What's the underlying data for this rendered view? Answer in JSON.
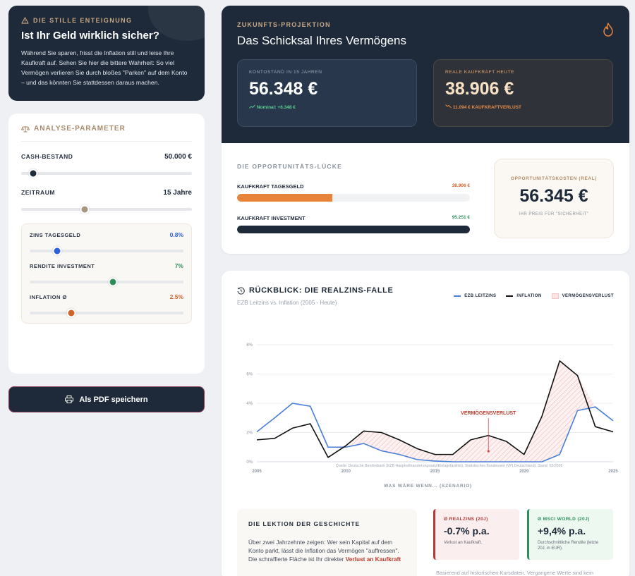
{
  "warning": {
    "eyebrow": "DIE STILLE ENTEIGNUNG",
    "title": "Ist Ihr Geld wirklich sicher?",
    "text": "Während Sie sparen, frisst die Inflation still und leise Ihre Kaufkraft auf. Sehen Sie hier die bittere Wahrheit: So viel Vermögen verlieren Sie durch bloßes \"Parken\" auf dem Konto – und das könnten Sie stattdessen daraus machen."
  },
  "params": {
    "heading": "ANALYSE-PARAMETER",
    "cash": {
      "label": "CASH-BESTAND",
      "value": "50.000 €",
      "fraction": 0.07,
      "color": "#1e2a3a"
    },
    "period": {
      "label": "ZEITRAUM",
      "value": "15 Jahre",
      "fraction": 0.37,
      "color": "#a89580"
    },
    "interest": {
      "label": "ZINS TAGESGELD",
      "value": "0.8%",
      "fraction": 0.18,
      "color": "#2f5fd6",
      "value_color": "#2f5fd6"
    },
    "return": {
      "label": "RENDITE INVESTMENT",
      "value": "7%",
      "fraction": 0.54,
      "color": "#2f8f5b",
      "value_color": "#2f8f5b"
    },
    "inflation": {
      "label": "INFLATION Ø",
      "value": "2.5%",
      "fraction": 0.27,
      "color": "#d0632a",
      "value_color": "#d0632a"
    }
  },
  "pdf_button": "Als PDF speichern",
  "projection": {
    "eyebrow": "ZUKUNFTS-PROJEKTION",
    "title": "Das Schicksal Ihres Vermögens",
    "kpi_nominal": {
      "label": "KONTOSTAND IN 15 JAHREN",
      "value": "56.348 €",
      "sub": "Nominal: +6.348 €"
    },
    "kpi_real": {
      "label": "REALE KAUFKRAFT HEUTE",
      "value": "38.906 €",
      "sub": "11.094 € KAUFKRAFTVERLUST"
    },
    "gap_eyebrow": "DIE OPPORTUNITÄTS-LÜCKE",
    "bar_cash": {
      "label": "KAUFKRAFT TAGESGELD",
      "value": "38.906 €",
      "fraction": 0.408,
      "color": "#e8843a",
      "value_color": "#d0632a"
    },
    "bar_invest": {
      "label": "KAUFKRAFT INVESTMENT",
      "value": "95.251 €",
      "fraction": 1.0,
      "color": "#1e2a3a",
      "value_color": "#2f8f5b"
    },
    "opportunity": {
      "label": "OPPORTUNITÄTSKOSTEN (REAL)",
      "value": "56.345 €",
      "sub": "IHR PREIS FÜR \"SICHERHEIT\""
    }
  },
  "history": {
    "title": "RÜCKBLICK: DIE REALZINS-FALLE",
    "subtitle": "EZB Leitzins vs. Inflation (2005 - Heute)",
    "legend": {
      "ecb": "EZB LEITZINS",
      "inflation": "INFLATION",
      "loss": "VERMÖGENSVERLUST"
    },
    "lesson_title": "DIE LEKTION DER GESCHICHTE",
    "lesson_text": "Über zwei Jahrzehnte zeigen: Wer sein Kapital auf dem Konto parkt, lässt die Inflation das Vermögen \"auffressen\". Die schraffierte Fläche ist Ihr direkter ",
    "lesson_highlight": "Verlust an Kaufkraft",
    "stat_real": {
      "label": "Ø REALZINS (20J)",
      "value": "-0.7% p.a.",
      "sub": "Verlust an Kaufkraft."
    },
    "stat_msci": {
      "label": "Ø MSCI WORLD (20J)",
      "value": "+9,4% p.a.",
      "sub": "Durchschnittliche Rendite (letzte 20J, in EUR)."
    },
    "footnote": "Basierend auf historischen Kursdaten. Vergangene Werte sind kein"
  },
  "chart_data": {
    "type": "line",
    "x": [
      2005,
      2006,
      2007,
      2008,
      2009,
      2010,
      2011,
      2012,
      2013,
      2014,
      2015,
      2016,
      2017,
      2018,
      2019,
      2020,
      2021,
      2022,
      2023,
      2024,
      2025
    ],
    "series": [
      {
        "name": "EZB LEITZINS",
        "color": "#4a7fd8",
        "values": [
          2.05,
          3.0,
          4.0,
          3.8,
          1.0,
          1.0,
          1.25,
          0.75,
          0.5,
          0.15,
          0.05,
          0.0,
          0.0,
          0.0,
          0.0,
          0.0,
          0.0,
          0.5,
          3.5,
          3.75,
          2.8
        ]
      },
      {
        "name": "INFLATION",
        "color": "#111111",
        "values": [
          1.5,
          1.6,
          2.3,
          2.6,
          0.3,
          1.1,
          2.1,
          2.0,
          1.5,
          0.9,
          0.5,
          0.5,
          1.5,
          1.8,
          1.4,
          0.5,
          3.1,
          6.9,
          5.9,
          2.4,
          2.05
        ]
      }
    ],
    "xticks": [
      2005,
      2010,
      2015,
      2020,
      2025
    ],
    "yticks": [
      "0%",
      "2%",
      "4%",
      "6%",
      "8%"
    ],
    "ylim": [
      0,
      8
    ],
    "xlabel": "WAS WÄRE WENN... (SZENARIO)",
    "annotation": "VERMÖGENSVERLUST",
    "annotation_x": 2018,
    "source": "Quelle: Deutsche Bundesbank (EZB Hauptrefinanzierungssatz/Einlagefazilität), Statistisches Bundesamt (VPI Deutschland). Stand: 02/2026",
    "grid": true
  }
}
